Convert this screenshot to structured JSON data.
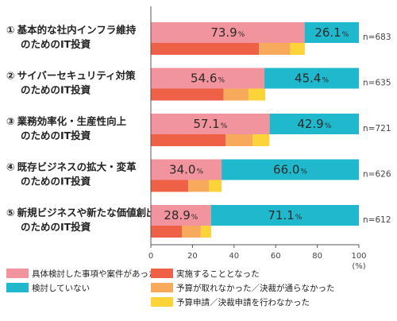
{
  "chart_data": {
    "type": "bar",
    "orientation": "horizontal",
    "stacked": true,
    "categories": [
      {
        "num": "①",
        "line1": "基本的な社内インフラ維持",
        "line2": "のためのIT投資",
        "n": "n=683"
      },
      {
        "num": "②",
        "line1": "サイバーセキュリティ対策",
        "line2": "のためのIT投資",
        "n": "n=635"
      },
      {
        "num": "③",
        "line1": "業務効率化・生産性向上",
        "line2": "のためのIT投資",
        "n": "n=721"
      },
      {
        "num": "④",
        "line1": "既存ビジネスの拡大・変革",
        "line2": "のためのIT投資",
        "n": "n=626"
      },
      {
        "num": "⑤",
        "line1": "新規ビジネスや新たな価値創出",
        "line2": "のためのIT投資",
        "n": "n=612"
      }
    ],
    "main_series": [
      {
        "name": "具体検討した事項や案件があった",
        "color": "#f2949e",
        "values": [
          73.9,
          54.6,
          57.1,
          34.0,
          28.9
        ],
        "labels": [
          "73.9",
          "54.6",
          "57.1",
          "34.0",
          "28.9"
        ]
      },
      {
        "name": "検討していない",
        "color": "#1fb8cc",
        "values": [
          26.1,
          45.4,
          42.9,
          66.0,
          71.1
        ],
        "labels": [
          "26.1",
          "45.4",
          "42.9",
          "66.0",
          "71.1"
        ]
      }
    ],
    "sub_series": [
      {
        "name": "実施することとなった",
        "color": "#ee6147",
        "values": [
          52,
          35,
          36,
          18,
          15
        ]
      },
      {
        "name": "予算が取れなかった／決裁が通らなかった",
        "color": "#f7aa5c",
        "values": [
          15,
          12,
          13,
          10,
          9
        ]
      },
      {
        "name": "予算申請／決裁申請を行わなかった",
        "color": "#fcd43a",
        "values": [
          7,
          8,
          8,
          6,
          5
        ]
      }
    ],
    "pct_symbol": "%",
    "x_ticks": [
      "0",
      "20",
      "40",
      "60",
      "80",
      "100"
    ],
    "x_unit": "(%)",
    "xlim": [
      0,
      100
    ],
    "grid": false,
    "legend_placement": "bottom"
  }
}
